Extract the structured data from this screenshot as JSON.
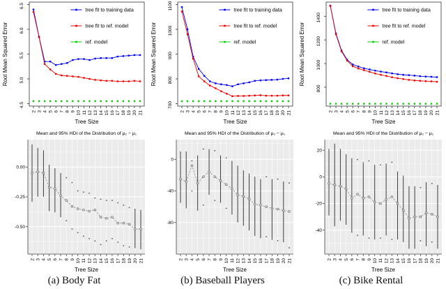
{
  "figure": {
    "captions": [
      "(a) Body Fat",
      "(b) Baseball Players",
      "(c) Bike Rental"
    ]
  },
  "colors": {
    "training": "#0000EE",
    "ref_fit": "#EE0000",
    "ref_model": "#00CC00",
    "panel_gray": "#EBEBEB",
    "mean_line": "#8a8a8a",
    "error_bar": "#3c3c3c"
  },
  "chart_data": [
    {
      "id": "rmse-body-fat",
      "type": "line",
      "title": "",
      "xlabel": "Tree Size",
      "ylabel": "Root Mean Squared Error",
      "x": [
        2,
        3,
        4,
        5,
        6,
        7,
        8,
        9,
        10,
        11,
        12,
        13,
        14,
        15,
        16,
        17,
        18,
        19,
        20,
        21
      ],
      "ylim": [
        4.45,
        6.55
      ],
      "yticks": [
        4.5,
        5.0,
        5.5,
        6.0,
        6.5
      ],
      "ytick_labels": [
        "4.5",
        "5.0",
        "5.5",
        "6.0",
        "6.5"
      ],
      "legend": true,
      "grid": false,
      "series": [
        {
          "name": "tree fit to training data",
          "color": "#0000EE",
          "line": true,
          "values": [
            6.4,
            5.85,
            5.35,
            5.35,
            5.28,
            5.3,
            5.32,
            5.38,
            5.4,
            5.4,
            5.38,
            5.41,
            5.42,
            5.42,
            5.42,
            5.45,
            5.46,
            5.47,
            5.48,
            5.48
          ]
        },
        {
          "name": "tree fit to ref. model",
          "color": "#EE0000",
          "line": true,
          "values": [
            6.35,
            5.84,
            5.3,
            5.19,
            5.1,
            5.07,
            5.06,
            5.05,
            5.04,
            5.02,
            5.0,
            4.98,
            4.97,
            4.96,
            4.96,
            4.95,
            4.95,
            4.95,
            4.96,
            4.95
          ]
        },
        {
          "name": "ref. model",
          "color": "#00CC00",
          "line": false,
          "values": [
            4.55,
            4.55,
            4.55,
            4.55,
            4.55,
            4.55,
            4.55,
            4.55,
            4.55,
            4.55,
            4.55,
            4.55,
            4.55,
            4.55,
            4.55,
            4.55,
            4.55,
            4.55,
            4.55,
            4.55
          ]
        }
      ]
    },
    {
      "id": "rmse-baseball",
      "type": "line",
      "title": "",
      "xlabel": "Tree Size",
      "ylabel": "Root Mean Squared Error",
      "x": [
        2,
        3,
        4,
        5,
        6,
        7,
        8,
        9,
        10,
        11,
        12,
        13,
        14,
        15,
        16,
        17,
        18,
        19,
        20,
        21
      ],
      "ylim": [
        690,
        1110
      ],
      "yticks": [
        700,
        800,
        900,
        1000,
        1100
      ],
      "ytick_labels": [
        "700",
        "800",
        "900",
        "1000",
        "1100"
      ],
      "legend": true,
      "grid": false,
      "series": [
        {
          "name": "tree fit to training data",
          "color": "#0000EE",
          "line": true,
          "values": [
            1090,
            1000,
            890,
            840,
            812,
            790,
            782,
            778,
            775,
            770,
            778,
            782,
            786,
            792,
            794,
            795,
            796,
            797,
            800,
            802
          ]
        },
        {
          "name": "tree fit to ref. model",
          "color": "#EE0000",
          "line": true,
          "values": [
            1072,
            980,
            882,
            810,
            790,
            773,
            762,
            750,
            740,
            730,
            731,
            731,
            732,
            733,
            734,
            732,
            732,
            732,
            733,
            733
          ]
        },
        {
          "name": "ref. model",
          "color": "#00CC00",
          "line": false,
          "values": [
            710,
            710,
            710,
            710,
            710,
            710,
            710,
            710,
            710,
            710,
            710,
            710,
            710,
            710,
            710,
            710,
            710,
            710,
            710,
            710
          ]
        }
      ]
    },
    {
      "id": "rmse-bike-rental",
      "type": "line",
      "title": "",
      "xlabel": "Tree Size",
      "ylabel": "Root Mean Squared Error",
      "x": [
        2,
        3,
        4,
        5,
        6,
        7,
        8,
        9,
        10,
        11,
        12,
        13,
        14,
        15,
        16,
        17,
        18,
        19,
        20,
        21
      ],
      "ylim": [
        640,
        1520
      ],
      "yticks": [
        800,
        1000,
        1200,
        1400
      ],
      "ytick_labels": [
        "800",
        "1000",
        "1200",
        "1400"
      ],
      "legend": true,
      "grid": false,
      "series": [
        {
          "name": "tree fit to training data",
          "color": "#0000EE",
          "line": true,
          "values": [
            1490,
            1255,
            1110,
            1032,
            992,
            975,
            960,
            950,
            940,
            932,
            925,
            917,
            910,
            905,
            902,
            898,
            893,
            890,
            888,
            885
          ]
        },
        {
          "name": "tree fit to ref. model",
          "color": "#EE0000",
          "line": true,
          "values": [
            1487,
            1247,
            1103,
            1025,
            977,
            958,
            944,
            930,
            916,
            905,
            895,
            884,
            876,
            869,
            862,
            857,
            854,
            851,
            849,
            846
          ]
        },
        {
          "name": "ref. model",
          "color": "#00CC00",
          "line": false,
          "values": [
            660,
            660,
            660,
            660,
            660,
            660,
            660,
            660,
            660,
            660,
            660,
            660,
            660,
            660,
            660,
            660,
            660,
            660,
            660,
            660
          ]
        }
      ]
    },
    {
      "id": "hdi-body-fat",
      "type": "errorbar",
      "title": "Mean and 95% HDI of the Distribution of μ₂ − μ₁",
      "xlabel": "Tree Size",
      "x": [
        2,
        3,
        4,
        5,
        6,
        7,
        8,
        9,
        10,
        11,
        12,
        13,
        14,
        15,
        16,
        17,
        18,
        19,
        20,
        21
      ],
      "ylim": [
        -0.73,
        0.23
      ],
      "yticks": [
        0,
        -0.25,
        -0.5
      ],
      "ytick_labels": [
        "0.00",
        "-0.25",
        "-0.50"
      ],
      "grid": true,
      "mean": [
        -0.05,
        -0.04,
        -0.05,
        -0.17,
        -0.18,
        -0.24,
        -0.28,
        -0.33,
        -0.35,
        -0.36,
        -0.37,
        -0.36,
        -0.42,
        -0.43,
        -0.42,
        -0.47,
        -0.47,
        -0.48,
        -0.52,
        -0.52
      ],
      "upper": [
        0.19,
        0.16,
        0.14,
        0.02,
        -0.01,
        -0.05,
        -0.09,
        -0.13,
        -0.2,
        -0.21,
        -0.22,
        -0.26,
        -0.27,
        -0.28,
        -0.28,
        -0.3,
        -0.32,
        -0.34,
        -0.35,
        -0.36
      ],
      "lower": [
        -0.29,
        -0.25,
        -0.25,
        -0.37,
        -0.38,
        -0.42,
        -0.45,
        -0.52,
        -0.55,
        -0.58,
        -0.6,
        -0.62,
        -0.65,
        -0.62,
        -0.6,
        -0.63,
        -0.66,
        -0.67,
        -0.68,
        -0.69
      ],
      "bars": [
        true,
        true,
        true,
        true,
        true,
        true,
        false,
        false,
        false,
        false,
        false,
        false,
        false,
        false,
        false,
        false,
        false,
        false,
        true,
        true
      ]
    },
    {
      "id": "hdi-baseball",
      "type": "errorbar",
      "title": "Mean and 95% HDI of the Distribution of μ₂ − μ₁",
      "xlabel": "Tree Size",
      "x": [
        2,
        3,
        4,
        5,
        6,
        7,
        8,
        9,
        10,
        11,
        12,
        13,
        14,
        15,
        16,
        17,
        18,
        19,
        20,
        21
      ],
      "ylim": [
        -120,
        25
      ],
      "yticks": [
        0,
        -40,
        -80
      ],
      "ytick_labels": [
        "0",
        "-40",
        "-80"
      ],
      "grid": true,
      "mean": [
        -25,
        -28,
        -8,
        -30,
        -22,
        -16,
        -22,
        -27,
        -32,
        -37,
        -45,
        -47,
        -50,
        -57,
        -58,
        -60,
        -62,
        -63,
        -65,
        -66
      ],
      "upper": [
        10,
        10,
        -2,
        5,
        13,
        13,
        11,
        5,
        2,
        -2,
        -8,
        -14,
        -18,
        -22,
        -25,
        -22,
        -25,
        -25,
        -28,
        -30
      ],
      "lower": [
        -55,
        -62,
        -40,
        -65,
        -58,
        -45,
        -52,
        -55,
        -62,
        -70,
        -80,
        -84,
        -90,
        -97,
        -100,
        -98,
        -102,
        -103,
        -105,
        -112
      ],
      "bars": [
        true,
        true,
        false,
        true,
        false,
        true,
        false,
        true,
        false,
        true,
        true,
        true,
        true,
        true,
        true,
        false,
        true,
        false,
        true,
        false
      ]
    },
    {
      "id": "hdi-bike-rental",
      "type": "errorbar",
      "title": "Mean and 95% HDI of the Distribution of μ₂ − μ₁",
      "xlabel": "Tree Size",
      "x": [
        2,
        3,
        4,
        5,
        6,
        7,
        8,
        9,
        10,
        11,
        12,
        13,
        14,
        15,
        16,
        17,
        18,
        19,
        20,
        21
      ],
      "ylim": [
        -58,
        28
      ],
      "yticks": [
        20,
        0,
        -20,
        -40
      ],
      "ytick_labels": [
        "20",
        "0",
        "-20",
        "-40"
      ],
      "grid": true,
      "mean": [
        -5,
        -6,
        -7,
        -9,
        -16,
        -13,
        -16,
        -15,
        -19,
        -20,
        -17,
        -15,
        -20,
        -25,
        -31,
        -30,
        -30,
        -27,
        -28,
        -30
      ],
      "upper": [
        21,
        25,
        21,
        17,
        14,
        13,
        11,
        12,
        9,
        9,
        10,
        11,
        4,
        1,
        -7,
        -7,
        -8,
        -4,
        -5,
        -6
      ],
      "lower": [
        -29,
        -37,
        -33,
        -36,
        -42,
        -44,
        -44,
        -46,
        -47,
        -46,
        -44,
        -47,
        -47,
        -49,
        -54,
        -54,
        -48,
        -52,
        -49,
        -54
      ],
      "bars": [
        true,
        true,
        true,
        true,
        true,
        false,
        true,
        false,
        true,
        false,
        true,
        false,
        true,
        true,
        true,
        true,
        false,
        true,
        false,
        true
      ]
    }
  ]
}
